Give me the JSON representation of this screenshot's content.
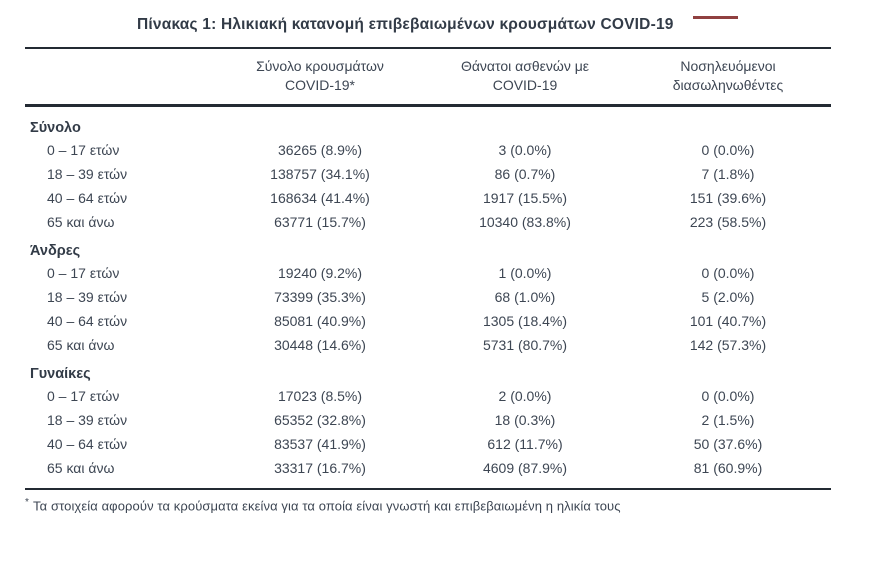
{
  "theme": {
    "ink": "#3d4653",
    "ink_strong": "#323b47",
    "rule": "#232a33",
    "bg": "#ffffff",
    "artifact": "#7d1f1f"
  },
  "page": {
    "title": "Πίνακας 1: Ηλικιακή κατανομή επιβεβαιωμένων κρουσμάτων COVID-19"
  },
  "table": {
    "columns": [
      {
        "line1": "Σύνολο κρουσμάτων",
        "line2": "COVID-19*"
      },
      {
        "line1": "Θάνατοι ασθενών με",
        "line2": "COVID-19"
      },
      {
        "line1": "Νοσηλευόμενοι",
        "line2": "διασωληνωθέντες"
      }
    ],
    "sections": [
      {
        "label": "Σύνολο",
        "rows": [
          {
            "age": "0 – 17 ετών",
            "cases": "36265 (8.9%)",
            "deaths": "3 (0.0%)",
            "intubated": "0 (0.0%)"
          },
          {
            "age": "18 – 39 ετών",
            "cases": "138757 (34.1%)",
            "deaths": "86 (0.7%)",
            "intubated": "7 (1.8%)"
          },
          {
            "age": "40 – 64 ετών",
            "cases": "168634 (41.4%)",
            "deaths": "1917 (15.5%)",
            "intubated": "151 (39.6%)"
          },
          {
            "age": "65 και άνω",
            "cases": "63771 (15.7%)",
            "deaths": "10340 (83.8%)",
            "intubated": "223 (58.5%)"
          }
        ]
      },
      {
        "label": "Άνδρες",
        "rows": [
          {
            "age": "0 – 17 ετών",
            "cases": "19240 (9.2%)",
            "deaths": "1 (0.0%)",
            "intubated": "0 (0.0%)"
          },
          {
            "age": "18 – 39 ετών",
            "cases": "73399 (35.3%)",
            "deaths": "68 (1.0%)",
            "intubated": "5 (2.0%)"
          },
          {
            "age": "40 – 64 ετών",
            "cases": "85081 (40.9%)",
            "deaths": "1305 (18.4%)",
            "intubated": "101 (40.7%)"
          },
          {
            "age": "65 και άνω",
            "cases": "30448 (14.6%)",
            "deaths": "5731 (80.7%)",
            "intubated": "142 (57.3%)"
          }
        ]
      },
      {
        "label": "Γυναίκες",
        "rows": [
          {
            "age": "0 – 17 ετών",
            "cases": "17023 (8.5%)",
            "deaths": "2 (0.0%)",
            "intubated": "0 (0.0%)"
          },
          {
            "age": "18 – 39 ετών",
            "cases": "65352 (32.8%)",
            "deaths": "18 (0.3%)",
            "intubated": "2 (1.5%)"
          },
          {
            "age": "40 – 64 ετών",
            "cases": "83537 (41.9%)",
            "deaths": "612 (11.7%)",
            "intubated": "50 (37.6%)"
          },
          {
            "age": "65 και άνω",
            "cases": "33317 (16.7%)",
            "deaths": "4609 (87.9%)",
            "intubated": "81 (60.9%)"
          }
        ]
      }
    ],
    "footnote_marker": "*",
    "footnote": "Τα στοιχεία αφορούν τα κρούσματα εκείνα για τα οποία είναι γνωστή και επιβεβαιωμένη η ηλικία τους"
  }
}
